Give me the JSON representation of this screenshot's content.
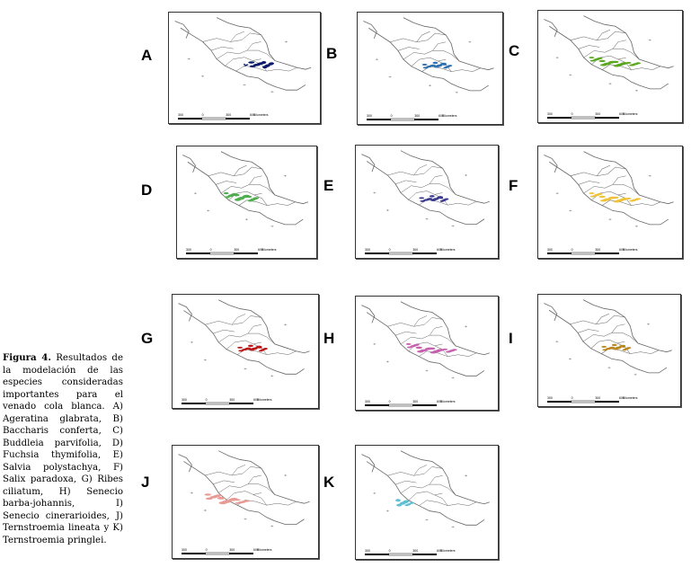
{
  "figure": {
    "caption_label": "Figura 4.",
    "caption_text": "Resultados de la modelación de las especies consideradas importantes para el venado cola blanca. A) Ageratina glabrata, B) Baccharis conferta, C) Buddleia parvifolia, D) Fuchsia thymifolia, E) Salvia polystachya, F) Salix paradoxa, G) Ribes ciliatum, H) Senecio barba-johannis, I) Senecio cinerarioides, J) Ternstroemia lineata y K) Ternstroemia pringlei."
  },
  "panels": [
    {
      "letter": "A",
      "species": "Ageratina glabrata",
      "color": "#0d1a6b",
      "region": "east-central"
    },
    {
      "letter": "B",
      "species": "Baccharis conferta",
      "color": "#2d6fb0",
      "region": "central"
    },
    {
      "letter": "C",
      "species": "Buddleia parvifolia",
      "color": "#5aa81e",
      "region": "central-wide"
    },
    {
      "letter": "D",
      "species": "Fuchsia thymifolia",
      "color": "#4fae4f",
      "region": "central-west"
    },
    {
      "letter": "E",
      "species": "Salvia polystachya",
      "color": "#3b3a8f",
      "region": "central"
    },
    {
      "letter": "F",
      "species": "Salix paradoxa",
      "color": "#f0c23a",
      "region": "central-wide"
    },
    {
      "letter": "G",
      "species": "Ribes ciliatum",
      "color": "#b81818",
      "region": "central"
    },
    {
      "letter": "H",
      "species": "Senecio barba-johannis",
      "color": "#c860b0",
      "region": "central-wide"
    },
    {
      "letter": "I",
      "species": "Senecio cinerarioides",
      "color": "#b8861a",
      "region": "central"
    },
    {
      "letter": "J",
      "species": "Ternstroemia lineata",
      "color": "#e89a94",
      "region": "west-central"
    },
    {
      "letter": "K",
      "species": "Ternstroemia pringlei",
      "color": "#5fc0d4",
      "region": "west"
    }
  ],
  "scale_label": "Kilometers",
  "scale_ticks": [
    "300",
    "0",
    "300",
    "600"
  ]
}
